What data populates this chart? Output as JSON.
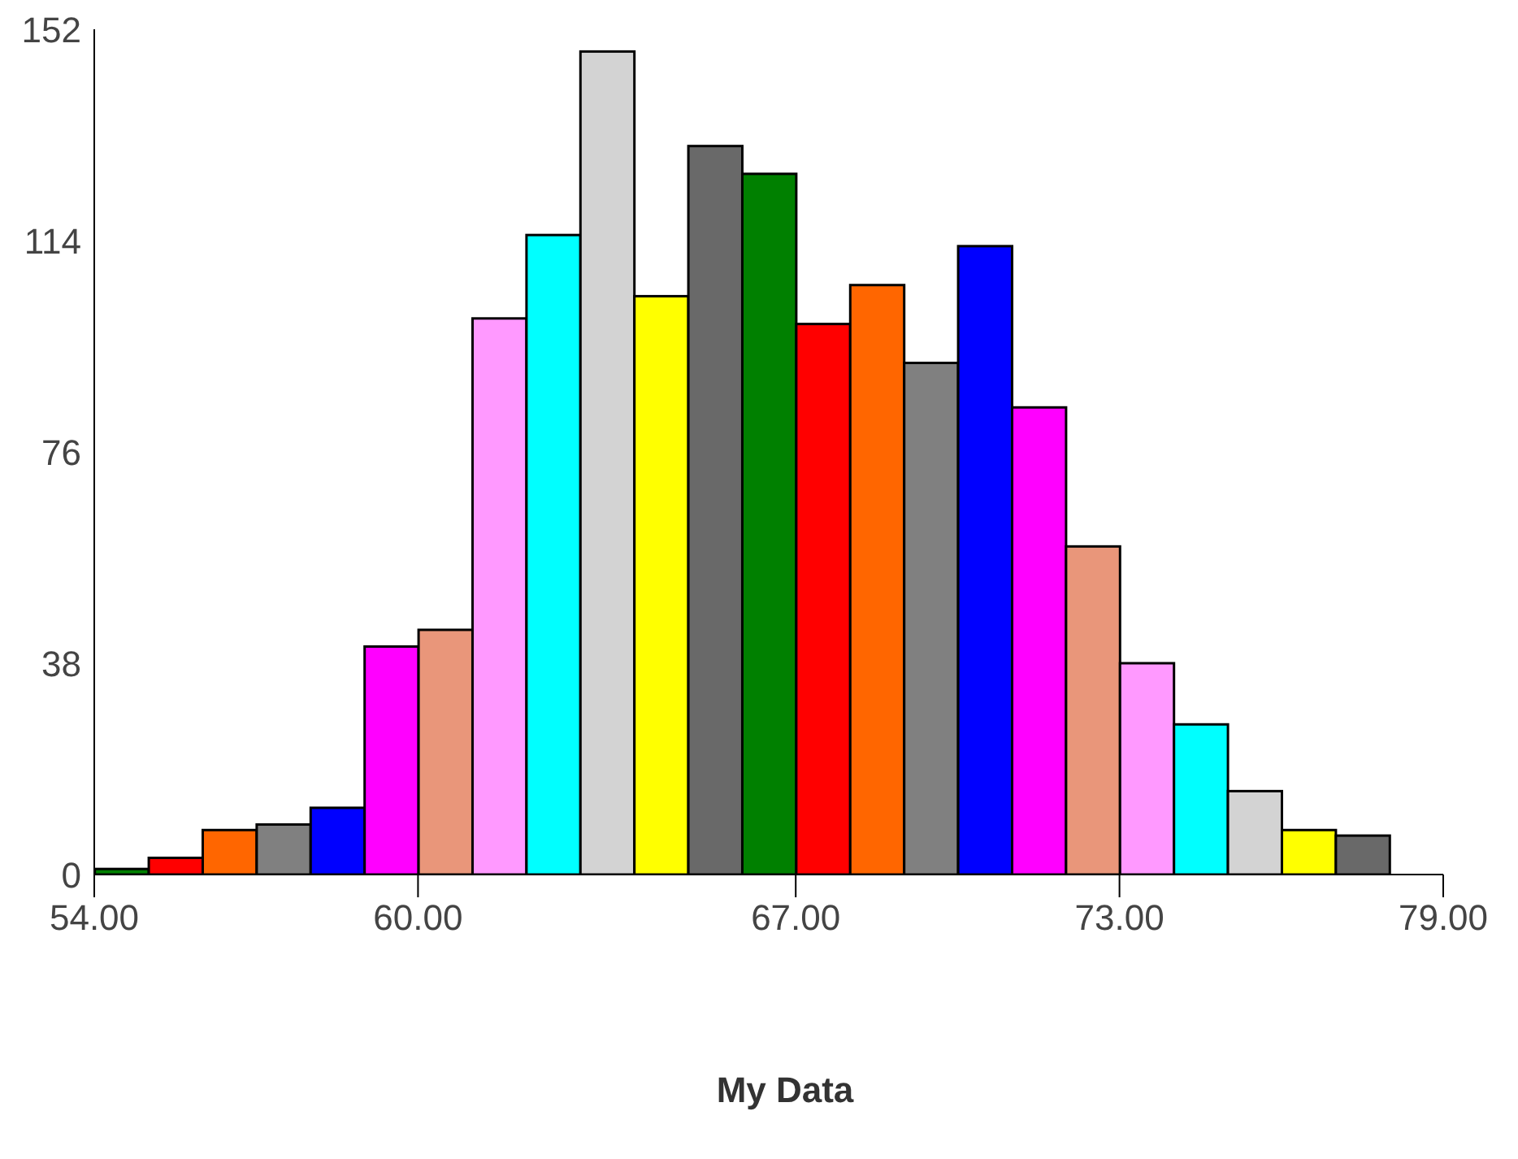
{
  "chart_data": {
    "type": "histogram",
    "xlabel": "My Data",
    "bins": [
      54,
      55,
      56,
      57,
      58,
      59,
      60,
      61,
      62,
      63,
      64,
      65,
      66,
      67,
      68,
      69,
      70,
      71,
      72,
      73,
      74,
      75,
      76,
      77,
      78
    ],
    "values": [
      1,
      3,
      8,
      9,
      12,
      41,
      44,
      100,
      115,
      148,
      104,
      131,
      126,
      99,
      106,
      92,
      113,
      84,
      59,
      38,
      27,
      15,
      8,
      7
    ],
    "colors": [
      "#008000",
      "#ff0000",
      "#ff6600",
      "#808080",
      "#0000ff",
      "#ff00ff",
      "#e9967a",
      "#ff99ff",
      "#00ffff",
      "#d3d3d3",
      "#ffff00",
      "#696969",
      "#008000",
      "#ff0000",
      "#ff6600",
      "#808080",
      "#0000ff",
      "#ff00ff",
      "#e9967a",
      "#ff99ff",
      "#00ffff",
      "#d3d3d3",
      "#ffff00",
      "#696969"
    ],
    "xlim": [
      54,
      79
    ],
    "xticks": [
      {
        "value": 54,
        "label": "54.00"
      },
      {
        "value": 60,
        "label": "60.00"
      },
      {
        "value": 67,
        "label": "67.00"
      },
      {
        "value": 73,
        "label": "73.00"
      },
      {
        "value": 79,
        "label": "79.00"
      }
    ],
    "ylim": [
      0,
      152
    ],
    "yticks": [
      0,
      38,
      76,
      114,
      152
    ],
    "grid": false
  }
}
